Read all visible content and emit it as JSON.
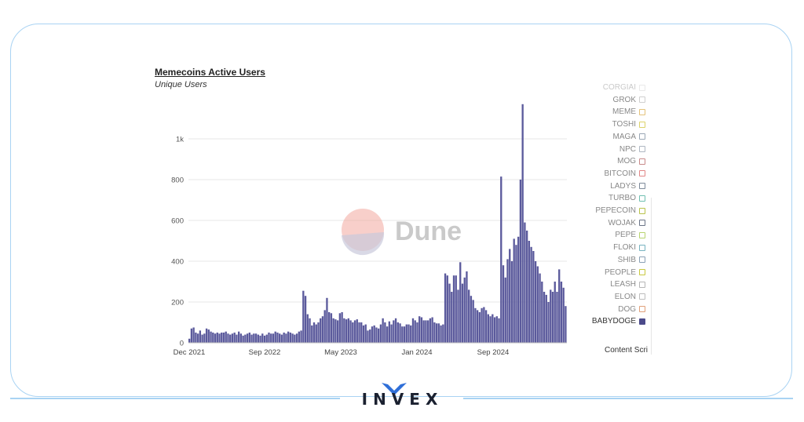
{
  "page": {
    "brand": "INVEX",
    "content_label": "Content Scri"
  },
  "chart_data": {
    "type": "bar",
    "title": "Memecoins Active Users",
    "subtitle": "Unique Users",
    "x_tick_labels": [
      "Dec 2021",
      "Sep 2022",
      "May 2023",
      "Jan 2024",
      "Sep 2024"
    ],
    "y_tick_labels": [
      "0",
      "200",
      "400",
      "600",
      "800",
      "1k"
    ],
    "ylim": [
      0,
      1200
    ],
    "grid": true,
    "watermark": "Dune",
    "bar_color": "#5b5a9c",
    "legend_position": "right",
    "legend": [
      {
        "name": "CORGIAI",
        "color": "#cfcfcf"
      },
      {
        "name": "GROK",
        "color": "#cfcfcf"
      },
      {
        "name": "MEME",
        "color": "#e4c27a"
      },
      {
        "name": "TOSHI",
        "color": "#dcd26a"
      },
      {
        "name": "MAGA",
        "color": "#9aa7b5"
      },
      {
        "name": "NPC",
        "color": "#aeb7c2"
      },
      {
        "name": "MOG",
        "color": "#c88a8a"
      },
      {
        "name": "BITCOIN",
        "color": "#e18686"
      },
      {
        "name": "LADYS",
        "color": "#7d8a9a"
      },
      {
        "name": "TURBO",
        "color": "#6fbfb0"
      },
      {
        "name": "PEPECOIN",
        "color": "#b9c34a"
      },
      {
        "name": "WOJAK",
        "color": "#6a7486"
      },
      {
        "name": "PEPE",
        "color": "#b8d470"
      },
      {
        "name": "FLOKI",
        "color": "#77b3c0"
      },
      {
        "name": "SHIB",
        "color": "#8aa0b5"
      },
      {
        "name": "PEOPLE",
        "color": "#c8c83e"
      },
      {
        "name": "LEASH",
        "color": "#b5b5b5"
      },
      {
        "name": "ELON",
        "color": "#bdbdbd"
      },
      {
        "name": "DOG",
        "color": "#e0a07a"
      },
      {
        "name": "BABYDOGE",
        "color": "#4b4a8a"
      }
    ],
    "series": [
      {
        "name": "BABYDOGE",
        "values": [
          20,
          70,
          75,
          50,
          45,
          60,
          40,
          45,
          70,
          65,
          55,
          50,
          45,
          50,
          45,
          50,
          50,
          55,
          45,
          40,
          45,
          50,
          40,
          55,
          45,
          35,
          40,
          45,
          50,
          40,
          45,
          45,
          40,
          35,
          45,
          35,
          40,
          50,
          45,
          45,
          55,
          50,
          45,
          40,
          50,
          45,
          55,
          50,
          45,
          40,
          45,
          55,
          60,
          255,
          230,
          140,
          120,
          85,
          100,
          90,
          100,
          120,
          130,
          160,
          220,
          150,
          145,
          120,
          115,
          110,
          145,
          150,
          120,
          115,
          120,
          110,
          100,
          110,
          115,
          100,
          100,
          85,
          90,
          60,
          65,
          80,
          85,
          75,
          70,
          90,
          120,
          100,
          80,
          105,
          90,
          110,
          120,
          100,
          95,
          80,
          80,
          90,
          90,
          85,
          120,
          110,
          100,
          130,
          125,
          110,
          110,
          110,
          120,
          125,
          100,
          95,
          95,
          85,
          90,
          340,
          330,
          290,
          250,
          330,
          330,
          260,
          395,
          290,
          320,
          350,
          260,
          230,
          210,
          170,
          160,
          150,
          170,
          175,
          160,
          140,
          130,
          140,
          125,
          130,
          120,
          815,
          380,
          320,
          410,
          460,
          400,
          510,
          480,
          520,
          800,
          1170,
          590,
          550,
          500,
          470,
          450,
          400,
          375,
          340,
          300,
          250,
          235,
          200,
          260,
          250,
          300,
          250,
          360,
          300,
          270,
          180
        ]
      }
    ]
  }
}
